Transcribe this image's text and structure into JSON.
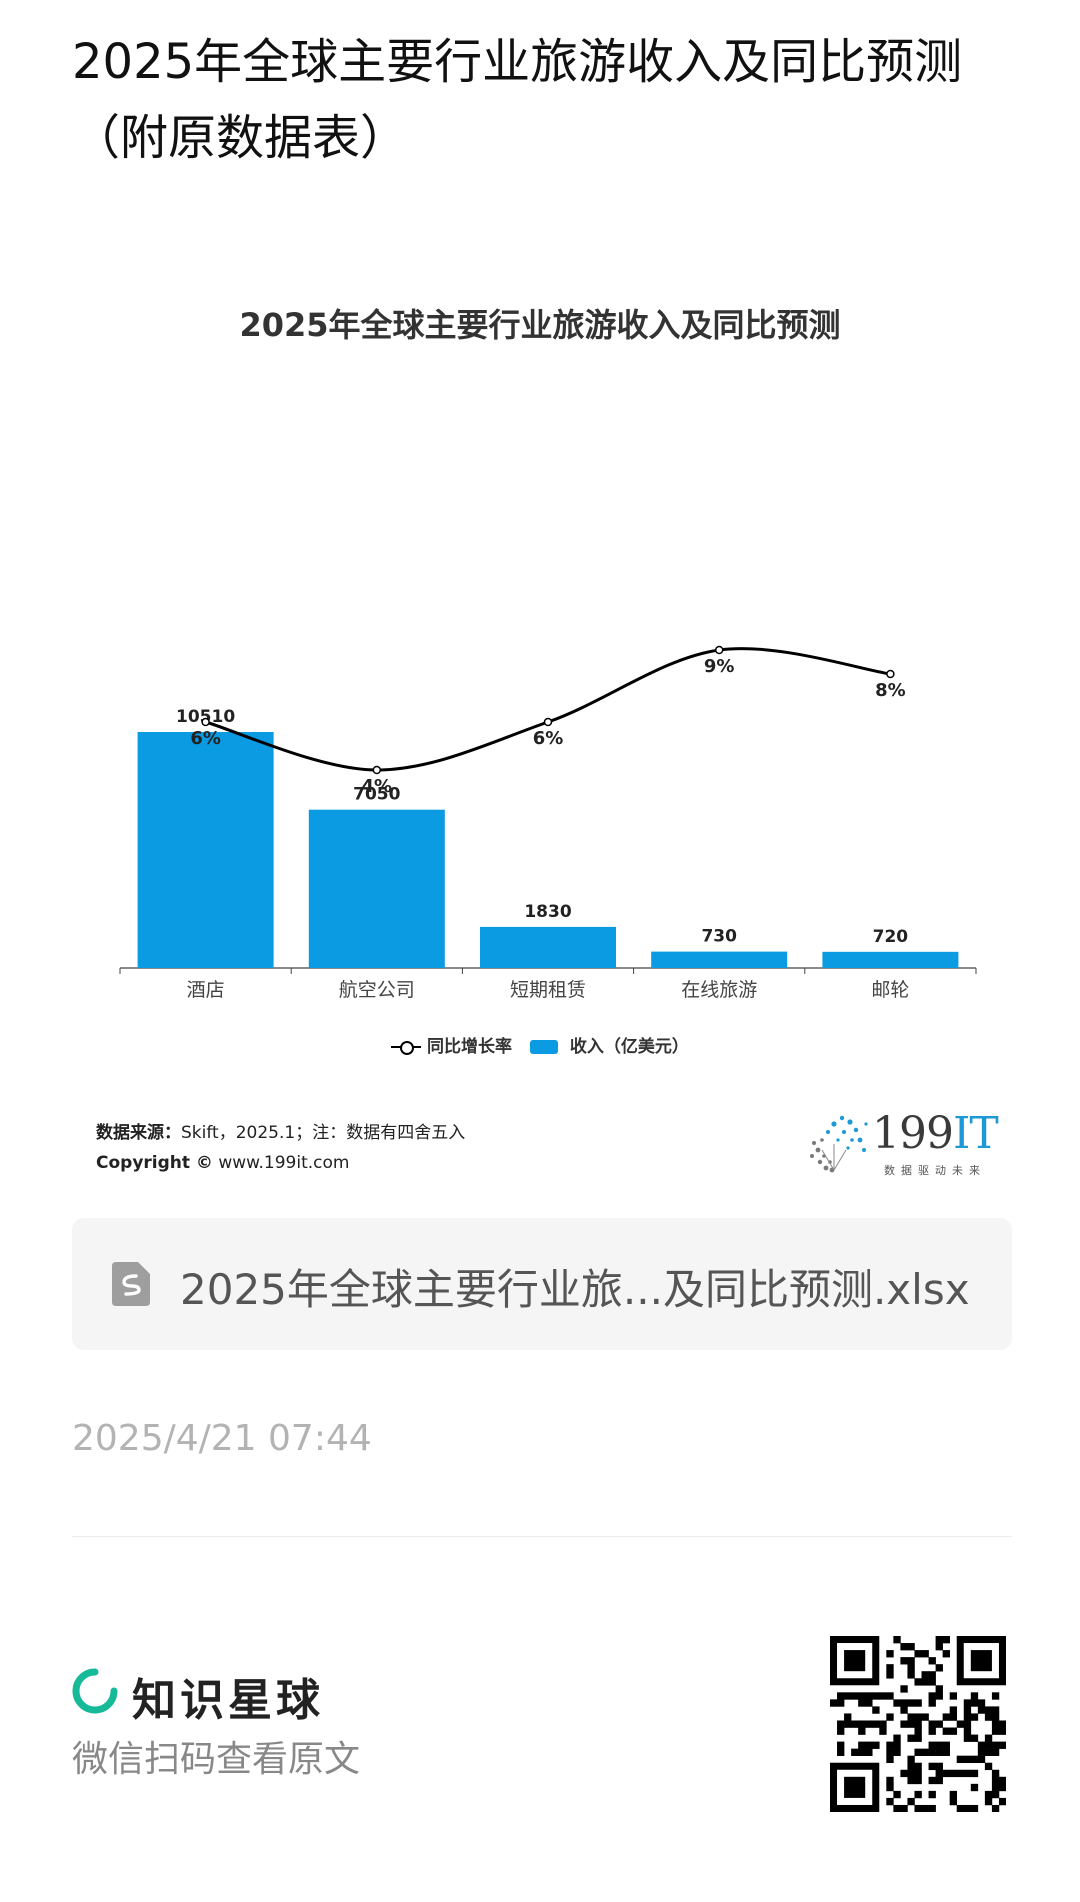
{
  "page": {
    "title": "2025年全球主要行业旅游收入及同比预测（附原数据表）"
  },
  "chart_data": {
    "type": "bar",
    "title": "2025年全球主要行业旅游收入及同比预测",
    "categories": [
      "酒店",
      "航空公司",
      "短期租赁",
      "在线旅游",
      "邮轮"
    ],
    "series": [
      {
        "name": "收入（亿美元）",
        "type": "bar",
        "color": "#0a9be2",
        "values": [
          10510,
          7050,
          1830,
          730,
          720
        ]
      },
      {
        "name": "同比增长率",
        "type": "line",
        "color": "#000000",
        "values": [
          6,
          4,
          6,
          9,
          8
        ],
        "unit": "%"
      }
    ],
    "legend_position": "bottom-center",
    "grid": false,
    "bar_labels": [
      "10510",
      "7050",
      "1830",
      "730",
      "720"
    ],
    "line_labels": [
      "6%",
      "4%",
      "6%",
      "9%",
      "8%"
    ]
  },
  "source": {
    "key": "数据来源：",
    "text": "Skift，2025.1；注：数据有四舍五入",
    "copyright_key": "Copyright ©",
    "copyright_text": " www.199it.com"
  },
  "logo": {
    "number": "199",
    "suffix": "IT",
    "tagline": "数据驱动未来"
  },
  "file": {
    "name": "2025年全球主要行业旅...及同比预测.xlsx",
    "icon": "spreadsheet-file-icon"
  },
  "timestamp": "2025/4/21 07:44",
  "footer": {
    "brand_name": "知识星球",
    "caption": "微信扫码查看原文",
    "brand_icon": "zsxq-logo-icon",
    "qr_icon": "qr-code-icon"
  }
}
